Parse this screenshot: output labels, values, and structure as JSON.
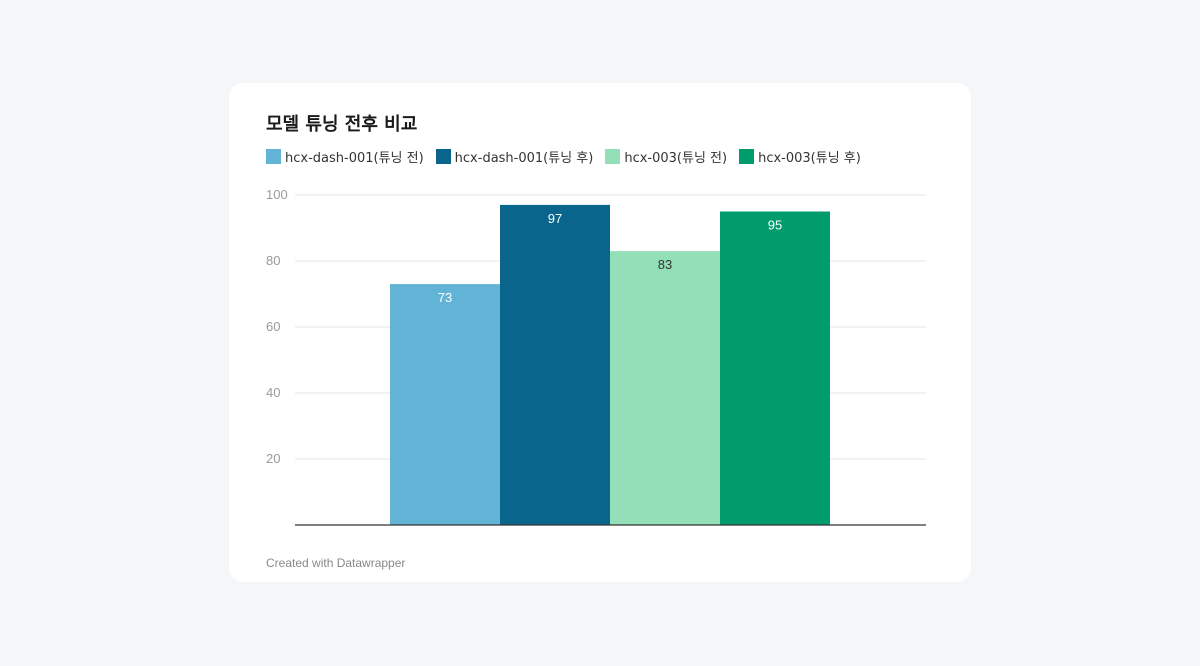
{
  "footer": {
    "credit": "Created with Datawrapper"
  },
  "chart_data": {
    "type": "bar",
    "title": "모델 튜닝 전후 비교",
    "xlabel": "",
    "ylabel": "",
    "ylim": [
      0,
      100
    ],
    "yticks": [
      20,
      40,
      60,
      80,
      100
    ],
    "grid": true,
    "legend_position": "top-left",
    "series": [
      {
        "name": "hcx-dash-001(튜닝 전)",
        "value": 73,
        "color": "#62b4d6",
        "label_color": "#ffffff"
      },
      {
        "name": "hcx-dash-001(튜닝 후)",
        "value": 97,
        "color": "#0a658c",
        "label_color": "#ffffff"
      },
      {
        "name": "hcx-003(튜닝 전)",
        "value": 83,
        "color": "#93e0b8",
        "label_color": "#333333"
      },
      {
        "name": "hcx-003(튜닝 후)",
        "value": 95,
        "color": "#009c6c",
        "label_color": "#ffffff"
      }
    ]
  }
}
